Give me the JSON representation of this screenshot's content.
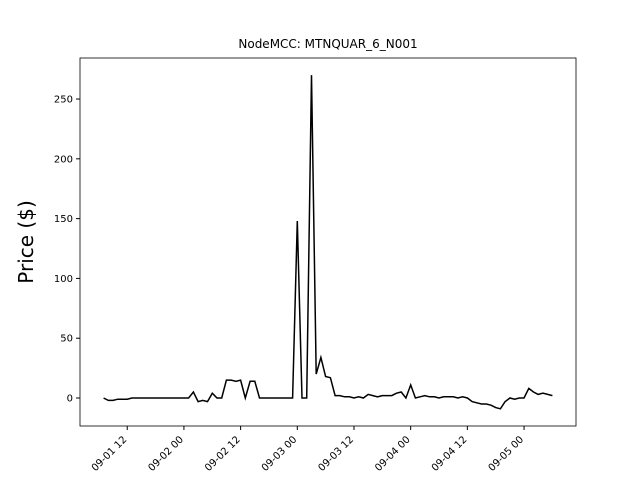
{
  "chart_data": {
    "type": "line",
    "title": "NodeMCC: MTNQUAR_6_N001",
    "y_label": "Price ($)",
    "color": "#000000",
    "x": [
      "09-01 07",
      "09-01 08",
      "09-01 09",
      "09-01 10",
      "09-01 11",
      "09-01 12",
      "09-01 13",
      "09-01 14",
      "09-01 15",
      "09-01 16",
      "09-01 17",
      "09-01 18",
      "09-01 19",
      "09-01 20",
      "09-01 21",
      "09-01 22",
      "09-01 23",
      "09-02 00",
      "09-02 01",
      "09-02 02",
      "09-02 03",
      "09-02 04",
      "09-02 05",
      "09-02 06",
      "09-02 07",
      "09-02 08",
      "09-02 09",
      "09-02 10",
      "09-02 11",
      "09-02 12",
      "09-02 13",
      "09-02 14",
      "09-02 15",
      "09-02 16",
      "09-02 17",
      "09-02 18",
      "09-02 19",
      "09-02 20",
      "09-02 21",
      "09-02 22",
      "09-02 23",
      "09-03 00",
      "09-03 01",
      "09-03 02",
      "09-03 03",
      "09-03 04",
      "09-03 05",
      "09-03 06",
      "09-03 07",
      "09-03 08",
      "09-03 09",
      "09-03 10",
      "09-03 11",
      "09-03 12",
      "09-03 13",
      "09-03 14",
      "09-03 15",
      "09-03 16",
      "09-03 17",
      "09-03 18",
      "09-03 19",
      "09-03 20",
      "09-03 21",
      "09-03 22",
      "09-03 23",
      "09-04 00",
      "09-04 01",
      "09-04 02",
      "09-04 03",
      "09-04 04",
      "09-04 05",
      "09-04 06",
      "09-04 07",
      "09-04 08",
      "09-04 09",
      "09-04 10",
      "09-04 11",
      "09-04 12",
      "09-04 13",
      "09-04 14",
      "09-04 15",
      "09-04 16",
      "09-04 17",
      "09-04 18",
      "09-04 19",
      "09-04 20",
      "09-04 21",
      "09-04 22",
      "09-04 23",
      "09-05 00",
      "09-05 01",
      "09-05 02",
      "09-05 03",
      "09-05 04",
      "09-05 05",
      "09-05 06"
    ],
    "values": [
      0,
      -2,
      -2,
      -1,
      -1,
      -1,
      0,
      0,
      0,
      0,
      0,
      0,
      0,
      0,
      0,
      0,
      0,
      0,
      0,
      5,
      -3,
      -2,
      -3,
      4,
      0,
      0,
      15,
      15,
      14,
      15,
      0,
      14,
      14,
      0,
      0,
      0,
      0,
      0,
      0,
      0,
      0,
      148,
      0,
      0,
      270,
      20,
      34,
      18,
      17,
      2,
      2,
      1,
      1,
      0,
      1,
      0,
      3,
      2,
      1,
      2,
      2,
      2,
      4,
      5,
      0,
      11,
      0,
      1,
      2,
      1,
      1,
      0,
      1,
      1,
      1,
      0,
      1,
      0,
      -3,
      -4,
      -5,
      -5,
      -6,
      -8,
      -9,
      -3,
      0,
      -1,
      0,
      0,
      8,
      5,
      3,
      4,
      3,
      2
    ],
    "xlim": [
      "09-01 02",
      "09-05 11"
    ],
    "xticks": [
      "09-01 12",
      "09-02 00",
      "09-02 12",
      "09-03 00",
      "09-03 12",
      "09-04 00",
      "09-04 12",
      "09-05 00"
    ],
    "ylim": [
      -23.4,
      284.3
    ],
    "yticks": [
      0,
      50,
      100,
      150,
      200,
      250
    ]
  }
}
